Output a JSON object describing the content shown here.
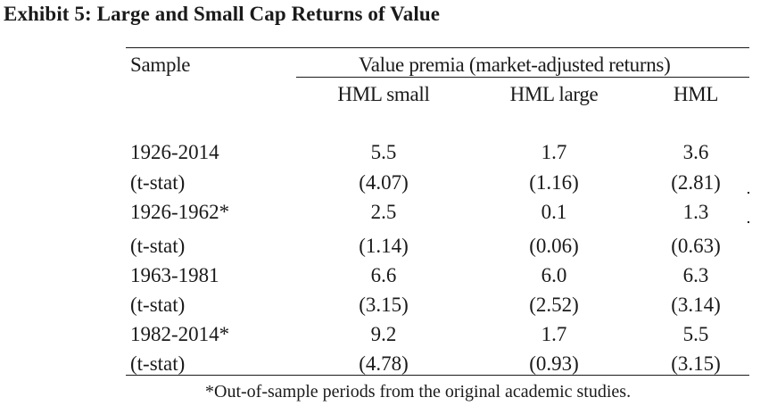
{
  "title": "Exhibit 5: Large and Small Cap Returns of Value",
  "table": {
    "sample_header": "Sample",
    "group_header": "Value premia (market-adjusted returns)",
    "columns": [
      "HML small",
      "HML large",
      "HML"
    ],
    "rows": [
      {
        "label": "1926-2014",
        "values": [
          "5.5",
          "1.7",
          "3.6"
        ]
      },
      {
        "label": "(t-stat)",
        "values": [
          "(4.07)",
          "(1.16)",
          "(2.81)"
        ]
      },
      {
        "label": "1926-1962*",
        "values": [
          "2.5",
          "0.1",
          "1.3"
        ]
      },
      {
        "label": "(t-stat)",
        "values": [
          "(1.14)",
          "(0.06)",
          "(0.63)"
        ]
      },
      {
        "label": "1963-1981",
        "values": [
          "6.6",
          "6.0",
          "6.3"
        ]
      },
      {
        "label": "(t-stat)",
        "values": [
          "(3.15)",
          "(2.52)",
          "(3.14)"
        ]
      },
      {
        "label": "1982-2014*",
        "values": [
          "9.2",
          "1.7",
          "5.5"
        ]
      },
      {
        "label": "(t-stat)",
        "values": [
          "(4.78)",
          "(0.93)",
          "(3.15)"
        ]
      }
    ],
    "footnote": "*Out-of-sample periods from the original academic studies."
  }
}
